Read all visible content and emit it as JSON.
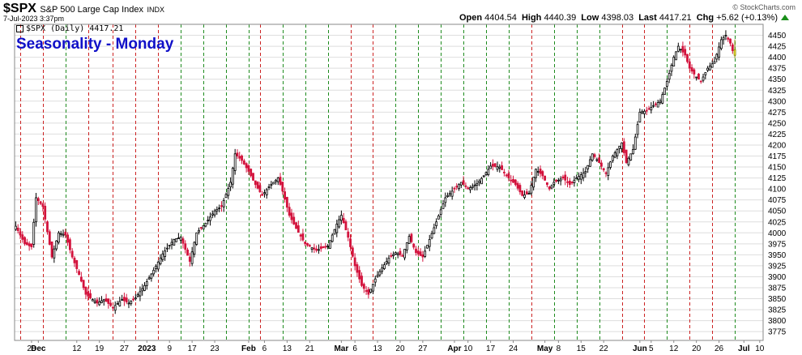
{
  "header": {
    "symbol": "$SPX",
    "name": "S&P 500 Large Cap Index",
    "exchange": "INDX",
    "datetime": "7-Jul-2023 3:37pm",
    "credit": "© StockCharts.com",
    "open_label": "Open",
    "open": "4404.54",
    "high_label": "High",
    "high": "4440.39",
    "low_label": "Low",
    "low": "4398.03",
    "last_label": "Last",
    "last": "4417.21",
    "chg_label": "Chg",
    "chg": "+5.62 (+0.13%)"
  },
  "annotation": "Seasonality - Monday",
  "legend": "$SPX (Daily) 4417.21",
  "colors": {
    "up": "#ffffff",
    "down": "#d3123c",
    "outline": "#000000",
    "doji": "#000000",
    "today": "#ffee44",
    "grid": "#dedede",
    "vline_red": "#cc2222",
    "vline_green": "#1e8b1e",
    "title_blue": "#1010c8",
    "chg_green": "#1a8f1a"
  },
  "chart_data": {
    "type": "candlestick",
    "ylim": [
      3755,
      4475
    ],
    "ytick_values": [
      3775,
      3800,
      3825,
      3850,
      3875,
      3900,
      3925,
      3950,
      3975,
      4000,
      4025,
      4050,
      4075,
      4100,
      4125,
      4150,
      4175,
      4200,
      4225,
      4250,
      4275,
      4300,
      4325,
      4350,
      4375,
      4400,
      4425,
      4450
    ],
    "x_tick_labels": [
      {
        "i": 7,
        "label": "28",
        "bold": false
      },
      {
        "i": 10,
        "label": "Dec",
        "bold": true
      },
      {
        "i": 27,
        "label": "12",
        "bold": false
      },
      {
        "i": 37,
        "label": "19",
        "bold": false
      },
      {
        "i": 48,
        "label": "27",
        "bold": false
      },
      {
        "i": 58,
        "label": "2023",
        "bold": true
      },
      {
        "i": 68,
        "label": "9",
        "bold": false
      },
      {
        "i": 78,
        "label": "17",
        "bold": false
      },
      {
        "i": 88,
        "label": "23",
        "bold": false
      },
      {
        "i": 103,
        "label": "Feb",
        "bold": true
      },
      {
        "i": 110,
        "label": "6",
        "bold": false
      },
      {
        "i": 120,
        "label": "13",
        "bold": false
      },
      {
        "i": 130,
        "label": "21",
        "bold": false
      },
      {
        "i": 144,
        "label": "Mar",
        "bold": true
      },
      {
        "i": 150,
        "label": "6",
        "bold": false
      },
      {
        "i": 160,
        "label": "13",
        "bold": false
      },
      {
        "i": 170,
        "label": "20",
        "bold": false
      },
      {
        "i": 180,
        "label": "27",
        "bold": false
      },
      {
        "i": 194,
        "label": "Apr",
        "bold": true
      },
      {
        "i": 200,
        "label": "10",
        "bold": false
      },
      {
        "i": 210,
        "label": "17",
        "bold": false
      },
      {
        "i": 220,
        "label": "24",
        "bold": false
      },
      {
        "i": 234,
        "label": "May",
        "bold": true
      },
      {
        "i": 240,
        "label": "8",
        "bold": false
      },
      {
        "i": 250,
        "label": "15",
        "bold": false
      },
      {
        "i": 260,
        "label": "22",
        "bold": false
      },
      {
        "i": 276,
        "label": "Jun",
        "bold": true
      },
      {
        "i": 281,
        "label": "5",
        "bold": false
      },
      {
        "i": 291,
        "label": "12",
        "bold": false
      },
      {
        "i": 301,
        "label": "20",
        "bold": false
      },
      {
        "i": 311,
        "label": "26",
        "bold": false
      },
      {
        "i": 322,
        "label": "Jul",
        "bold": true
      },
      {
        "i": 329,
        "label": "10",
        "bold": false
      }
    ],
    "vlines": [
      {
        "i": 2,
        "c": "r"
      },
      {
        "i": 12,
        "c": "r"
      },
      {
        "i": 22,
        "c": "g"
      },
      {
        "i": 32,
        "c": "r"
      },
      {
        "i": 43,
        "c": "r"
      },
      {
        "i": 53,
        "c": "r"
      },
      {
        "i": 63,
        "c": "r"
      },
      {
        "i": 73,
        "c": "g"
      },
      {
        "i": 83,
        "c": "g"
      },
      {
        "i": 93,
        "c": "g"
      },
      {
        "i": 103,
        "c": "g"
      },
      {
        "i": 108,
        "c": "r"
      },
      {
        "i": 118,
        "c": "g"
      },
      {
        "i": 128,
        "c": "g"
      },
      {
        "i": 138,
        "c": "g"
      },
      {
        "i": 148,
        "c": "r"
      },
      {
        "i": 158,
        "c": "r"
      },
      {
        "i": 168,
        "c": "g"
      },
      {
        "i": 178,
        "c": "g"
      },
      {
        "i": 188,
        "c": "g"
      },
      {
        "i": 198,
        "c": "g"
      },
      {
        "i": 208,
        "c": "g"
      },
      {
        "i": 218,
        "c": "g"
      },
      {
        "i": 228,
        "c": "r"
      },
      {
        "i": 238,
        "c": "g"
      },
      {
        "i": 248,
        "c": "g"
      },
      {
        "i": 258,
        "c": "g"
      },
      {
        "i": 268,
        "c": "r"
      },
      {
        "i": 278,
        "c": "r"
      },
      {
        "i": 288,
        "c": "g"
      },
      {
        "i": 298,
        "c": "r"
      },
      {
        "i": 308,
        "c": "r"
      },
      {
        "i": 318,
        "c": "g"
      }
    ],
    "keypoints": [
      [
        0,
        4015
      ],
      [
        4,
        3975
      ],
      [
        7,
        3968
      ],
      [
        9,
        4080
      ],
      [
        12,
        4060
      ],
      [
        16,
        3945
      ],
      [
        19,
        4000
      ],
      [
        22,
        3995
      ],
      [
        25,
        3945
      ],
      [
        28,
        3905
      ],
      [
        31,
        3860
      ],
      [
        36,
        3840
      ],
      [
        39,
        3848
      ],
      [
        43,
        3830
      ],
      [
        47,
        3848
      ],
      [
        50,
        3840
      ],
      [
        53,
        3852
      ],
      [
        57,
        3880
      ],
      [
        61,
        3915
      ],
      [
        65,
        3952
      ],
      [
        70,
        3985
      ],
      [
        73,
        3990
      ],
      [
        77,
        3935
      ],
      [
        80,
        4000
      ],
      [
        84,
        4022
      ],
      [
        88,
        4050
      ],
      [
        91,
        4060
      ],
      [
        95,
        4115
      ],
      [
        97,
        4180
      ],
      [
        100,
        4165
      ],
      [
        103,
        4140
      ],
      [
        106,
        4110
      ],
      [
        109,
        4085
      ],
      [
        112,
        4105
      ],
      [
        116,
        4125
      ],
      [
        118,
        4095
      ],
      [
        121,
        4040
      ],
      [
        124,
        4010
      ],
      [
        128,
        3975
      ],
      [
        133,
        3960
      ],
      [
        138,
        3970
      ],
      [
        142,
        4020
      ],
      [
        144,
        4040
      ],
      [
        147,
        3990
      ],
      [
        150,
        3925
      ],
      [
        153,
        3880
      ],
      [
        156,
        3860
      ],
      [
        159,
        3895
      ],
      [
        162,
        3920
      ],
      [
        165,
        3942
      ],
      [
        168,
        3955
      ],
      [
        171,
        3948
      ],
      [
        174,
        3992
      ],
      [
        177,
        3955
      ],
      [
        180,
        3945
      ],
      [
        183,
        3985
      ],
      [
        186,
        4025
      ],
      [
        190,
        4080
      ],
      [
        194,
        4100
      ],
      [
        197,
        4115
      ],
      [
        200,
        4100
      ],
      [
        204,
        4112
      ],
      [
        207,
        4130
      ],
      [
        210,
        4152
      ],
      [
        214,
        4150
      ],
      [
        218,
        4125
      ],
      [
        221,
        4110
      ],
      [
        224,
        4085
      ],
      [
        227,
        4090
      ],
      [
        230,
        4145
      ],
      [
        233,
        4130
      ],
      [
        236,
        4100
      ],
      [
        238,
        4115
      ],
      [
        242,
        4125
      ],
      [
        245,
        4110
      ],
      [
        248,
        4125
      ],
      [
        252,
        4140
      ],
      [
        255,
        4180
      ],
      [
        258,
        4160
      ],
      [
        261,
        4135
      ],
      [
        264,
        4175
      ],
      [
        268,
        4205
      ],
      [
        270,
        4160
      ],
      [
        273,
        4190
      ],
      [
        276,
        4275
      ],
      [
        279,
        4278
      ],
      [
        282,
        4290
      ],
      [
        285,
        4300
      ],
      [
        288,
        4345
      ],
      [
        291,
        4400
      ],
      [
        293,
        4425
      ],
      [
        296,
        4405
      ],
      [
        298,
        4375
      ],
      [
        301,
        4355
      ],
      [
        303,
        4345
      ],
      [
        306,
        4375
      ],
      [
        309,
        4390
      ],
      [
        312,
        4440
      ],
      [
        314,
        4450
      ],
      [
        316,
        4432
      ],
      [
        317,
        4415
      ],
      [
        318,
        4411
      ]
    ],
    "today": {
      "open": 4404.54,
      "high": 4440.39,
      "low": 4398.03,
      "close": 4417.21
    }
  }
}
